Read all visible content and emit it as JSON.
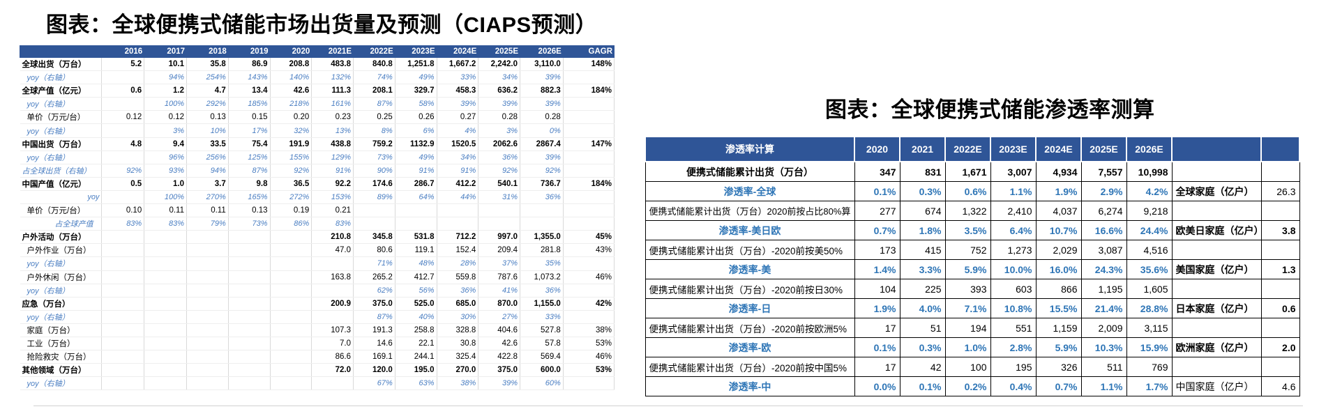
{
  "title_left": "图表：全球便携式储能市场出货量及预测（CIAPS预测）",
  "title_right": "图表：全球便携式储能渗透率测算",
  "left_table": {
    "headers": [
      "",
      "2016",
      "2017",
      "2018",
      "2019",
      "2020",
      "2021E",
      "2022E",
      "2023E",
      "2024E",
      "2025E",
      "2026E",
      "GAGR"
    ],
    "rows": [
      {
        "style": "bold",
        "cells": [
          "全球出货（万台）",
          "5.2",
          "10.1",
          "35.8",
          "86.9",
          "208.8",
          "483.8",
          "840.8",
          "1,251.8",
          "1,667.2",
          "2,242.0",
          "3,110.0",
          "148%"
        ]
      },
      {
        "style": "yoy ind",
        "cells": [
          "yoy（右轴）",
          "",
          "94%",
          "254%",
          "143%",
          "140%",
          "132%",
          "74%",
          "49%",
          "33%",
          "34%",
          "39%",
          ""
        ]
      },
      {
        "style": "bold",
        "cells": [
          "全球产值（亿元）",
          "0.6",
          "1.2",
          "4.7",
          "13.4",
          "42.6",
          "111.3",
          "208.1",
          "329.7",
          "458.3",
          "636.2",
          "882.3",
          "184%"
        ]
      },
      {
        "style": "yoy ind",
        "cells": [
          "yoy（右轴）",
          "",
          "100%",
          "292%",
          "185%",
          "218%",
          "161%",
          "87%",
          "58%",
          "39%",
          "39%",
          "39%",
          ""
        ]
      },
      {
        "style": "ind",
        "cells": [
          "单价（万元/台）",
          "0.12",
          "0.12",
          "0.13",
          "0.15",
          "0.20",
          "0.23",
          "0.25",
          "0.26",
          "0.27",
          "0.28",
          "0.28",
          ""
        ]
      },
      {
        "style": "yoy ind",
        "cells": [
          "yoy（右轴）",
          "",
          "3%",
          "10%",
          "17%",
          "32%",
          "13%",
          "8%",
          "6%",
          "4%",
          "3%",
          "0%",
          ""
        ]
      },
      {
        "style": "bold",
        "cells": [
          "中国出货（万台）",
          "4.8",
          "9.4",
          "33.5",
          "75.4",
          "191.9",
          "438.8",
          "759.2",
          "1132.9",
          "1520.5",
          "2062.6",
          "2867.4",
          "147%"
        ]
      },
      {
        "style": "yoy ind",
        "cells": [
          "yoy（右轴）",
          "",
          "96%",
          "256%",
          "125%",
          "155%",
          "129%",
          "73%",
          "49%",
          "34%",
          "36%",
          "39%",
          ""
        ]
      },
      {
        "style": "yoy",
        "cells": [
          "占全球出货（右轴）",
          "92%",
          "93%",
          "94%",
          "87%",
          "92%",
          "91%",
          "90%",
          "91%",
          "91%",
          "92%",
          "92%",
          ""
        ]
      },
      {
        "style": "bold",
        "cells": [
          "中国产值（亿元）",
          "0.5",
          "1.0",
          "3.7",
          "9.8",
          "36.5",
          "92.2",
          "174.6",
          "286.7",
          "412.2",
          "540.1",
          "736.7",
          "184%"
        ]
      },
      {
        "style": "yoy ind3",
        "cells": [
          "yoy",
          "",
          "100%",
          "270%",
          "165%",
          "272%",
          "153%",
          "89%",
          "64%",
          "44%",
          "31%",
          "36%",
          ""
        ]
      },
      {
        "style": "ind",
        "cells": [
          "单价（万元/台）",
          "0.10",
          "0.11",
          "0.11",
          "0.13",
          "0.19",
          "0.21",
          "",
          "",
          "",
          "",
          "",
          ""
        ]
      },
      {
        "style": "yoy ind4",
        "cells": [
          "占全球产值",
          "83%",
          "83%",
          "79%",
          "73%",
          "86%",
          "83%",
          "",
          "",
          "",
          "",
          "",
          ""
        ]
      },
      {
        "style": "bold",
        "cells": [
          "户外活动（万台）",
          "",
          "",
          "",
          "",
          "",
          "210.8",
          "345.8",
          "531.8",
          "712.2",
          "997.0",
          "1,355.0",
          "45%"
        ]
      },
      {
        "style": "ind",
        "cells": [
          "户外作业（万台）",
          "",
          "",
          "",
          "",
          "",
          "47.0",
          "80.6",
          "119.1",
          "152.4",
          "209.4",
          "281.8",
          "43%"
        ]
      },
      {
        "style": "yoy ind",
        "cells": [
          "yoy（右轴）",
          "",
          "",
          "",
          "",
          "",
          "",
          "71%",
          "48%",
          "28%",
          "37%",
          "35%",
          ""
        ]
      },
      {
        "style": "ind",
        "cells": [
          "户外休闲（万台）",
          "",
          "",
          "",
          "",
          "",
          "163.8",
          "265.2",
          "412.7",
          "559.8",
          "787.6",
          "1,073.2",
          "46%"
        ]
      },
      {
        "style": "yoy ind",
        "cells": [
          "yoy（右轴）",
          "",
          "",
          "",
          "",
          "",
          "",
          "62%",
          "56%",
          "36%",
          "41%",
          "36%",
          ""
        ]
      },
      {
        "style": "bold",
        "cells": [
          "应急（万台）",
          "",
          "",
          "",
          "",
          "",
          "200.9",
          "375.0",
          "525.0",
          "685.0",
          "870.0",
          "1,155.0",
          "42%"
        ]
      },
      {
        "style": "yoy ind",
        "cells": [
          "yoy（右轴）",
          "",
          "",
          "",
          "",
          "",
          "",
          "87%",
          "40%",
          "30%",
          "27%",
          "33%",
          ""
        ]
      },
      {
        "style": "ind",
        "cells": [
          "家庭（万台）",
          "",
          "",
          "",
          "",
          "",
          "107.3",
          "191.3",
          "258.8",
          "328.8",
          "404.6",
          "527.8",
          "38%"
        ]
      },
      {
        "style": "ind",
        "cells": [
          "工业（万台）",
          "",
          "",
          "",
          "",
          "",
          "7.0",
          "14.6",
          "22.1",
          "30.8",
          "42.6",
          "57.8",
          "53%"
        ]
      },
      {
        "style": "ind",
        "cells": [
          "抢险救灾（万台）",
          "",
          "",
          "",
          "",
          "",
          "86.6",
          "169.1",
          "244.1",
          "325.4",
          "422.8",
          "569.4",
          "46%"
        ]
      },
      {
        "style": "bold",
        "cells": [
          "其他领域（万台）",
          "",
          "",
          "",
          "",
          "",
          "72.0",
          "120.0",
          "195.0",
          "270.0",
          "375.0",
          "600.0",
          "53%"
        ]
      },
      {
        "style": "yoy ind",
        "cells": [
          "yoy（右轴）",
          "",
          "",
          "",
          "",
          "",
          "",
          "67%",
          "63%",
          "38%",
          "39%",
          "60%",
          ""
        ]
      }
    ]
  },
  "right_table": {
    "headers": [
      "渗透率计算",
      "2020",
      "2021",
      "2022E",
      "2023E",
      "2024E",
      "2025E",
      "2026E",
      "",
      ""
    ],
    "rows": [
      {
        "style": "rowbold",
        "cells": [
          "便携式储能累计出货（万台）",
          "347",
          "831",
          "1,671",
          "3,007",
          "4,934",
          "7,557",
          "10,998",
          "",
          ""
        ]
      },
      {
        "style": "blue",
        "cells": [
          "渗透率-全球",
          "0.1%",
          "0.3%",
          "0.6%",
          "1.1%",
          "1.9%",
          "2.9%",
          "4.2%",
          "全球家庭（亿户）",
          "26.3"
        ],
        "region_bold": true,
        "value_bold": false
      },
      {
        "style": "plain",
        "cells": [
          "便携式储能累计出货（万台）2020前按占比80%算",
          "277",
          "674",
          "1,322",
          "2,410",
          "4,037",
          "6,274",
          "9,218",
          "",
          ""
        ]
      },
      {
        "style": "blue",
        "cells": [
          "渗透率-美日欧",
          "0.7%",
          "1.8%",
          "3.5%",
          "6.4%",
          "10.7%",
          "16.6%",
          "24.4%",
          "欧美日家庭（亿户）",
          "3.8"
        ],
        "region_bold": true,
        "value_bold": true
      },
      {
        "style": "plain",
        "cells": [
          "便携式储能累计出货（万台）-2020前按美50%",
          "173",
          "415",
          "752",
          "1,273",
          "2,029",
          "3,087",
          "4,516",
          "",
          ""
        ]
      },
      {
        "style": "blue",
        "cells": [
          "渗透率-美",
          "1.4%",
          "3.3%",
          "5.9%",
          "10.0%",
          "16.0%",
          "24.3%",
          "35.6%",
          "美国家庭（亿户）",
          "1.3"
        ],
        "region_bold": true,
        "value_bold": true
      },
      {
        "style": "plain",
        "cells": [
          "便携式储能累计出货（万台）-2020前按日30%",
          "104",
          "225",
          "393",
          "603",
          "866",
          "1,195",
          "1,605",
          "",
          ""
        ]
      },
      {
        "style": "blue",
        "cells": [
          "渗透率-日",
          "1.9%",
          "4.0%",
          "7.1%",
          "10.8%",
          "15.5%",
          "21.4%",
          "28.8%",
          "日本家庭（亿户）",
          "0.6"
        ],
        "region_bold": true,
        "value_bold": true
      },
      {
        "style": "plain",
        "cells": [
          "便携式储能累计出货（万台）-2020前按欧洲5%",
          "17",
          "51",
          "194",
          "551",
          "1,159",
          "2,009",
          "3,115",
          "",
          ""
        ]
      },
      {
        "style": "blue",
        "cells": [
          "渗透率-欧",
          "0.1%",
          "0.3%",
          "1.0%",
          "2.8%",
          "5.9%",
          "10.3%",
          "15.9%",
          "欧洲家庭（亿户）",
          "2.0"
        ],
        "region_bold": true,
        "value_bold": true
      },
      {
        "style": "plain",
        "cells": [
          "便携式储能累计出货（万台）-2020前按中国5%",
          "17",
          "42",
          "100",
          "195",
          "326",
          "511",
          "769",
          "",
          ""
        ]
      },
      {
        "style": "blue",
        "cells": [
          "渗透率-中",
          "0.0%",
          "0.1%",
          "0.2%",
          "0.4%",
          "0.7%",
          "1.1%",
          "1.7%",
          "中国家庭（亿户）",
          "4.6"
        ],
        "region_bold": false,
        "value_bold": false
      }
    ]
  }
}
